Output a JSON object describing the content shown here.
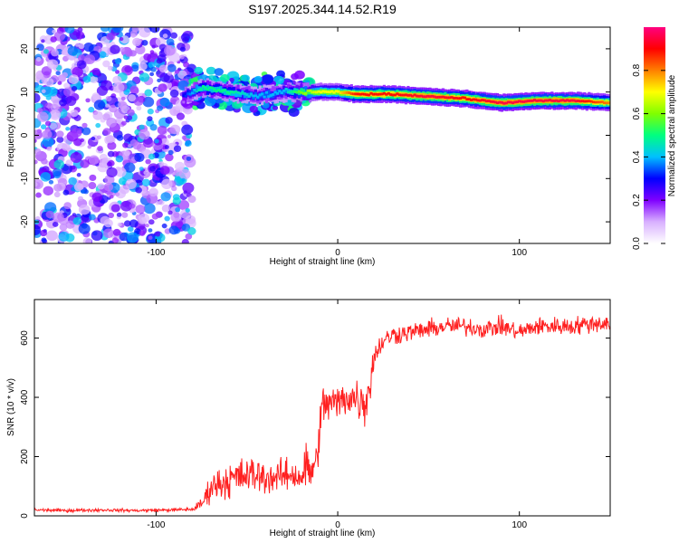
{
  "title": "S197.2025.344.14.52.R19",
  "chart_data": [
    {
      "type": "heatmap",
      "name": "spectrogram",
      "xlabel": "Height of straight line (km)",
      "ylabel": "Frequency (Hz)",
      "xlim": [
        -167,
        150
      ],
      "ylim": [
        -25,
        25
      ],
      "xticks": [
        -100,
        0,
        100
      ],
      "yticks": [
        -20,
        -10,
        0,
        10,
        20
      ],
      "xtick_labels": [
        "-100",
        "0",
        "100"
      ],
      "ytick_labels": [
        "-20",
        "-10",
        "0",
        "10",
        "20"
      ],
      "colorbar": {
        "label": "Normalized spectral amplitude",
        "range": [
          0.0,
          1.0
        ],
        "ticks": [
          0.0,
          0.2,
          0.4,
          0.6,
          0.8
        ],
        "tick_labels": [
          "0.0",
          "0.2",
          "0.4",
          "0.6",
          "0.8"
        ],
        "colors": [
          "#ffffff",
          "#d8b0ff",
          "#8000ff",
          "#0000ff",
          "#00c0ff",
          "#00ff80",
          "#80ff00",
          "#ffff00",
          "#ff8000",
          "#ff0000",
          "#ff0080"
        ]
      },
      "ridge": {
        "description_x_km": [
          -85,
          -75,
          -60,
          -45,
          -30,
          -20,
          -10,
          0,
          10,
          30,
          50,
          70,
          90,
          110,
          130,
          150
        ],
        "frequency_hz": [
          9,
          11,
          10,
          9,
          10,
          10,
          10,
          10,
          9.5,
          9.5,
          9,
          8.5,
          7.5,
          8,
          8,
          7.5
        ],
        "peak_amplitude": [
          0.3,
          0.5,
          0.5,
          0.4,
          0.4,
          0.6,
          0.7,
          0.7,
          0.9,
          0.9,
          0.95,
          0.9,
          0.95,
          0.95,
          0.95,
          0.8
        ]
      },
      "noise_region_x_km": [
        -167,
        -80
      ]
    },
    {
      "type": "line",
      "name": "snr",
      "xlabel": "Height of straight line (km)",
      "ylabel": "SNR (10 * v/v)",
      "xlim": [
        -167,
        150
      ],
      "ylim": [
        0,
        730
      ],
      "xticks": [
        -100,
        0,
        100
      ],
      "yticks": [
        0,
        200,
        400,
        600
      ],
      "xtick_labels": [
        "-100",
        "0",
        "100"
      ],
      "ytick_labels": [
        "0",
        "200",
        "400",
        "600"
      ],
      "color": "#ff2020",
      "x": [
        -167,
        -150,
        -130,
        -110,
        -90,
        -80,
        -75,
        -72,
        -70,
        -65,
        -60,
        -55,
        -50,
        -45,
        -40,
        -35,
        -30,
        -25,
        -20,
        -18,
        -15,
        -12,
        -10,
        -8,
        -5,
        0,
        5,
        10,
        15,
        18,
        20,
        25,
        30,
        40,
        50,
        60,
        70,
        80,
        90,
        100,
        110,
        120,
        130,
        140,
        150
      ],
      "mean": [
        20,
        18,
        20,
        18,
        20,
        22,
        40,
        70,
        100,
        110,
        120,
        130,
        135,
        140,
        130,
        130,
        135,
        140,
        130,
        160,
        150,
        170,
        300,
        370,
        380,
        380,
        400,
        400,
        380,
        450,
        540,
        590,
        610,
        620,
        630,
        640,
        640,
        630,
        640,
        620,
        640,
        640,
        640,
        650,
        650
      ],
      "spread": [
        8,
        8,
        8,
        8,
        8,
        10,
        30,
        60,
        70,
        80,
        90,
        90,
        90,
        90,
        80,
        80,
        80,
        80,
        70,
        150,
        100,
        100,
        120,
        120,
        100,
        90,
        90,
        110,
        120,
        90,
        60,
        50,
        50,
        45,
        45,
        45,
        45,
        45,
        45,
        45,
        45,
        45,
        45,
        45,
        45
      ]
    }
  ]
}
